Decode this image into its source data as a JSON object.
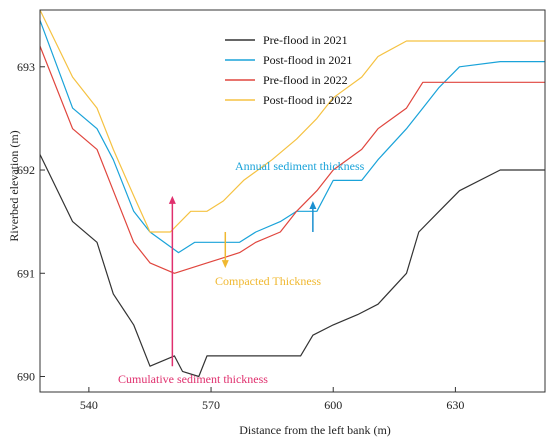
{
  "chart_data": {
    "type": "line",
    "title": "",
    "xlabel": "Distance from the left bank (m)",
    "ylabel": "Riverbed elevation (m)",
    "xlim": [
      528,
      652
    ],
    "ylim": [
      689.85,
      693.55
    ],
    "xticks": [
      540,
      570,
      600,
      630
    ],
    "yticks": [
      690,
      691,
      692,
      693
    ],
    "grid": false,
    "legend_position": "top-center",
    "series": [
      {
        "name": "Pre-flood in 2021",
        "color": "#333333",
        "x": [
          528,
          536,
          542,
          546,
          551,
          555,
          561,
          563,
          567,
          569,
          573,
          577,
          581,
          592,
          595,
          600,
          606,
          611,
          618,
          621,
          626,
          631,
          641,
          645,
          652
        ],
        "y": [
          692.15,
          691.5,
          691.3,
          690.8,
          690.5,
          690.1,
          690.2,
          690.05,
          690.0,
          690.2,
          690.2,
          690.2,
          690.2,
          690.2,
          690.4,
          690.5,
          690.6,
          690.7,
          691.0,
          691.4,
          691.6,
          691.8,
          692.0,
          692.0,
          692.0
        ]
      },
      {
        "name": "Post-flood in 2021",
        "color": "#1aa3d9",
        "x": [
          528,
          536,
          542,
          546,
          551,
          555,
          562,
          566,
          569,
          573,
          577,
          581,
          587,
          591,
          596,
          600,
          607,
          611,
          618,
          622,
          626,
          631,
          641,
          645,
          652
        ],
        "y": [
          693.45,
          692.6,
          692.4,
          692.1,
          691.6,
          691.4,
          691.2,
          691.3,
          691.3,
          691.3,
          691.3,
          691.4,
          691.5,
          691.6,
          691.6,
          691.9,
          691.9,
          692.1,
          692.4,
          692.6,
          692.8,
          693.0,
          693.05,
          693.05,
          693.05
        ]
      },
      {
        "name": "Pre-flood in 2022",
        "color": "#e0463e",
        "x": [
          528,
          536,
          542,
          546,
          551,
          555,
          561,
          569,
          573,
          577,
          581,
          587,
          591,
          596,
          600,
          607,
          611,
          618,
          622,
          626,
          631,
          641,
          645,
          652
        ],
        "y": [
          693.2,
          692.4,
          692.2,
          691.8,
          691.3,
          691.1,
          691.0,
          691.1,
          691.15,
          691.2,
          691.3,
          691.4,
          691.6,
          691.8,
          692.0,
          692.2,
          692.4,
          692.6,
          692.85,
          692.85,
          692.85,
          692.85,
          692.85,
          692.85
        ]
      },
      {
        "name": "Post-flood in 2022",
        "color": "#f5c242",
        "x": [
          528,
          536,
          542,
          546,
          551,
          555,
          560,
          565,
          569,
          573,
          578,
          585,
          591,
          596,
          600,
          607,
          611,
          618,
          622,
          626,
          631,
          641,
          645,
          652
        ],
        "y": [
          693.55,
          692.9,
          692.6,
          692.2,
          691.75,
          691.4,
          691.4,
          691.6,
          691.6,
          691.7,
          691.9,
          692.1,
          692.3,
          692.5,
          692.7,
          692.9,
          693.1,
          693.25,
          693.25,
          693.25,
          693.25,
          693.25,
          693.25,
          693.25
        ]
      }
    ],
    "annotations": [
      {
        "text": "Annual sediment thickness",
        "color": "#1aa3d9"
      },
      {
        "text": "Compacted Thickness",
        "color": "#f5c242"
      },
      {
        "text": "Cumulative sediment thickness",
        "color": "#e0306e"
      }
    ]
  }
}
